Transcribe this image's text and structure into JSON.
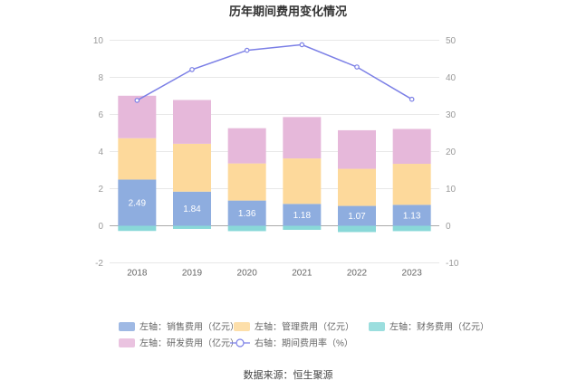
{
  "chart_data": {
    "type": "bar",
    "title": "历年期间费用变化情况",
    "categories": [
      "2018",
      "2019",
      "2020",
      "2021",
      "2022",
      "2023"
    ],
    "left_axis": {
      "ylim": [
        -2,
        10
      ],
      "ticks": [
        "-2",
        "0",
        "2",
        "4",
        "6",
        "8",
        "10"
      ]
    },
    "right_axis": {
      "ylim": [
        -10,
        50
      ],
      "ticks": [
        "-10",
        "0",
        "10",
        "20",
        "30",
        "40",
        "50"
      ]
    },
    "series": [
      {
        "name": "左轴：销售费用（亿元）",
        "type": "bar",
        "stack": "cost",
        "color": "#8eaddf",
        "values": [
          2.49,
          1.84,
          1.36,
          1.18,
          1.07,
          1.13
        ],
        "labels": [
          "2.49",
          "1.84",
          "1.36",
          "1.18",
          "1.07",
          "1.13"
        ]
      },
      {
        "name": "左轴：管理费用（亿元）",
        "type": "bar",
        "stack": "cost",
        "color": "#fdd99b",
        "values": [
          2.23,
          2.58,
          2.0,
          2.45,
          2.0,
          2.21
        ]
      },
      {
        "name": "左轴：财务费用（亿元）",
        "type": "bar",
        "stack": "cost",
        "color": "#89d8d8",
        "values": [
          -0.28,
          -0.17,
          -0.29,
          -0.22,
          -0.34,
          -0.29
        ]
      },
      {
        "name": "左轴：研发费用（亿元）",
        "type": "bar",
        "stack": "cost",
        "color": "#e6b8da",
        "values": [
          2.29,
          2.36,
          1.9,
          2.23,
          2.08,
          1.88
        ]
      },
      {
        "name": "右轴：期间费用率（%）",
        "type": "line",
        "axis": "right",
        "color": "#7b7fe6",
        "values": [
          33.8,
          42.1,
          47.3,
          48.8,
          42.8,
          34.1
        ]
      }
    ],
    "source": "数据来源：恒生聚源"
  }
}
